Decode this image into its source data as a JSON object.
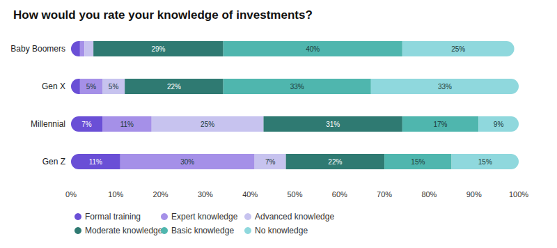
{
  "chart_data": {
    "type": "bar",
    "title": "How would you rate your knowledge of investments?",
    "orientation": "horizontal",
    "stacked": true,
    "data_labels": true,
    "grid": false,
    "legend": "bottom-left",
    "categories": [
      "Baby Boomers",
      "Gen X",
      "Millennial",
      "Gen Z"
    ],
    "series": [
      {
        "name": "Formal training",
        "color": "#6a4fd6",
        "values": [
          2,
          2,
          7,
          11
        ],
        "value_labels": [
          null,
          null,
          "7%",
          "11%"
        ]
      },
      {
        "name": "Expert knowledge",
        "color": "#a590e8",
        "values": [
          1,
          5,
          11,
          30
        ],
        "value_labels": [
          null,
          "5%",
          "11%",
          "30%"
        ]
      },
      {
        "name": "Advanced knowledge",
        "color": "#c7c3ef",
        "values": [
          2,
          5,
          25,
          7
        ],
        "value_labels": [
          null,
          "5%",
          "25%",
          "7%"
        ]
      },
      {
        "name": "Moderate knowledge",
        "color": "#2f7a72",
        "values": [
          29,
          22,
          31,
          22
        ],
        "value_labels": [
          "29%",
          "22%",
          "31%",
          "22%"
        ]
      },
      {
        "name": "Basic knowledge",
        "color": "#4fb6ae",
        "values": [
          40,
          33,
          17,
          15
        ],
        "value_labels": [
          "40%",
          "33%",
          "17%",
          "15%"
        ]
      },
      {
        "name": "No knowledge",
        "color": "#8fd8dd",
        "values": [
          25,
          33,
          9,
          15
        ],
        "value_labels": [
          "25%",
          "33%",
          "9%",
          "15%"
        ]
      }
    ],
    "xlim": [
      0,
      100
    ],
    "xticks": [
      {
        "value": 0,
        "label": "0%"
      },
      {
        "value": 10,
        "label": "10%"
      },
      {
        "value": 20,
        "label": "20%"
      },
      {
        "value": 30,
        "label": "30%"
      },
      {
        "value": 40,
        "label": "40%"
      },
      {
        "value": 50,
        "label": "50%"
      },
      {
        "value": 60,
        "label": "60%"
      },
      {
        "value": 70,
        "label": "70%"
      },
      {
        "value": 80,
        "label": "80%"
      },
      {
        "value": 90,
        "label": "90%"
      },
      {
        "value": 100,
        "label": "100%"
      }
    ]
  }
}
